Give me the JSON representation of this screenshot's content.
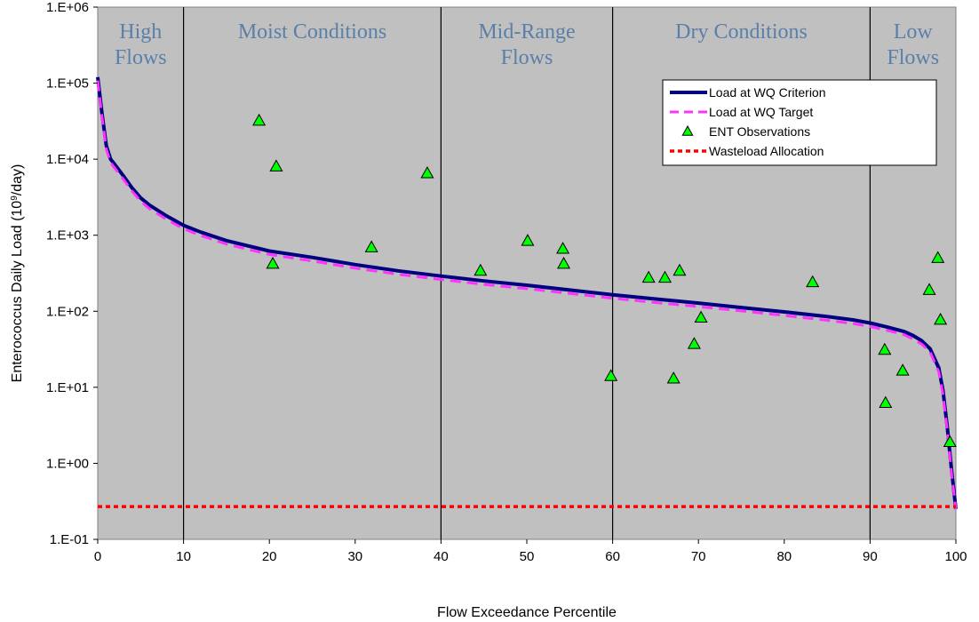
{
  "chart_data": {
    "type": "line",
    "title": "",
    "xlabel": "Flow Exceedance Percentile",
    "ylabel_prefix": "Enterococcus Daily Load (10",
    "ylabel_sup": "9",
    "ylabel_suffix": "/day)",
    "x_scale": "linear",
    "y_scale": "log",
    "xlim": [
      0,
      100
    ],
    "ylim": [
      0.1,
      1000000
    ],
    "x_ticks": [
      0,
      10,
      20,
      30,
      40,
      50,
      60,
      70,
      80,
      90,
      100
    ],
    "x_tick_labels": [
      "0",
      "10",
      "20",
      "30",
      "40",
      "50",
      "60",
      "70",
      "80",
      "90",
      "100"
    ],
    "y_ticks": [
      0.1,
      1,
      10,
      100,
      1000,
      10000,
      100000,
      1000000
    ],
    "y_tick_labels": [
      "1.E-01",
      "1.E+00",
      "1.E+01",
      "1.E+02",
      "1.E+03",
      "1.E+04",
      "1.E+05",
      "1.E+06"
    ],
    "grid": false,
    "plot_background": "#c0c0c0",
    "zone_dividers": [
      10,
      40,
      60,
      90
    ],
    "zones": [
      {
        "lines": [
          "High",
          "Flows"
        ],
        "center": 5
      },
      {
        "lines": [
          "Moist Conditions"
        ],
        "center": 25
      },
      {
        "lines": [
          "Mid-Range",
          "Flows"
        ],
        "center": 50
      },
      {
        "lines": [
          "Dry Conditions"
        ],
        "center": 75
      },
      {
        "lines": [
          "Low",
          "Flows"
        ],
        "center": 95
      }
    ],
    "legend_position": "top-right",
    "series": [
      {
        "name": "Load at WQ Criterion",
        "style": "solid",
        "color": "#000080",
        "x": [
          0,
          0.5,
          1,
          1.5,
          2,
          3,
          4,
          5,
          6,
          8,
          10,
          12,
          15,
          20,
          25,
          30,
          35,
          40,
          45,
          50,
          55,
          60,
          65,
          70,
          75,
          80,
          85,
          88,
          90,
          92,
          94,
          95,
          96,
          97,
          98,
          98.5,
          99,
          99.5,
          100
        ],
        "y": [
          120000,
          40000,
          15000,
          10000,
          8500,
          6000,
          4200,
          3100,
          2500,
          1800,
          1350,
          1100,
          850,
          620,
          510,
          410,
          340,
          290,
          250,
          220,
          190,
          165,
          145,
          128,
          112,
          98,
          85,
          77,
          70,
          62,
          54,
          48,
          41,
          32,
          18,
          9,
          3,
          0.8,
          0.25
        ]
      },
      {
        "name": "Load at WQ Target",
        "style": "dashed",
        "color": "#ff33ff",
        "x": [
          0,
          0.5,
          1,
          1.5,
          2,
          3,
          4,
          5,
          6,
          8,
          10,
          12,
          15,
          20,
          25,
          30,
          35,
          40,
          45,
          50,
          55,
          60,
          65,
          70,
          75,
          80,
          85,
          88,
          90,
          92,
          94,
          95,
          96,
          97,
          98,
          98.5,
          99,
          99.5,
          100
        ],
        "y": [
          108000,
          36000,
          13500,
          9000,
          7600,
          5400,
          3800,
          2800,
          2250,
          1620,
          1215,
          990,
          765,
          558,
          459,
          369,
          306,
          261,
          225,
          198,
          171,
          148,
          130,
          115,
          101,
          88,
          76,
          69,
          63,
          56,
          49,
          43,
          37,
          29,
          16,
          8,
          2.7,
          0.72,
          0.25
        ]
      },
      {
        "name": "ENT Observations",
        "style": "markers",
        "color": "#00ff00",
        "x": [
          18.8,
          20.8,
          20.4,
          31.9,
          38.4,
          44.6,
          50.1,
          54.2,
          54.3,
          59.8,
          64.2,
          66.1,
          67.1,
          67.8,
          69.5,
          70.3,
          83.3,
          91.7,
          91.8,
          93.8,
          96.9,
          97.9,
          98.2,
          99.3
        ],
        "y": [
          32000,
          8000,
          420,
          690,
          6500,
          340,
          840,
          660,
          420,
          14,
          275,
          275,
          13,
          340,
          37,
          82,
          240,
          31,
          6.2,
          16.5,
          190,
          500,
          77,
          1.9
        ]
      },
      {
        "name": "Wasteload Allocation",
        "style": "dotted",
        "color": "#ff0000",
        "x": [
          0,
          100
        ],
        "y": [
          0.27,
          0.27
        ]
      }
    ]
  }
}
